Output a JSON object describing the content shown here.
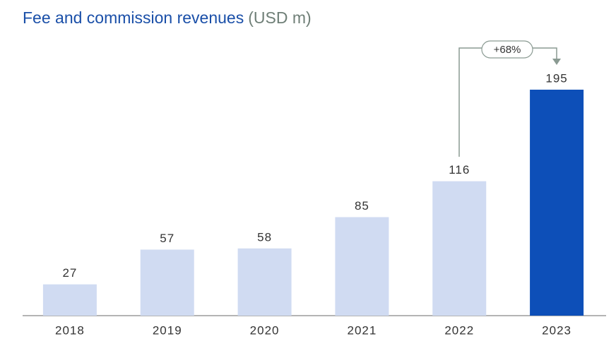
{
  "chart_data": {
    "type": "bar",
    "title": "Fee and commission revenues",
    "unit": "(USD m)",
    "categories": [
      "2018",
      "2019",
      "2020",
      "2021",
      "2022",
      "2023"
    ],
    "values": [
      27,
      57,
      58,
      85,
      116,
      195
    ],
    "colors": [
      "#d0dbf2",
      "#d0dbf2",
      "#d0dbf2",
      "#d0dbf2",
      "#d0dbf2",
      "#0d4fb8"
    ],
    "annotation": "+68%"
  }
}
